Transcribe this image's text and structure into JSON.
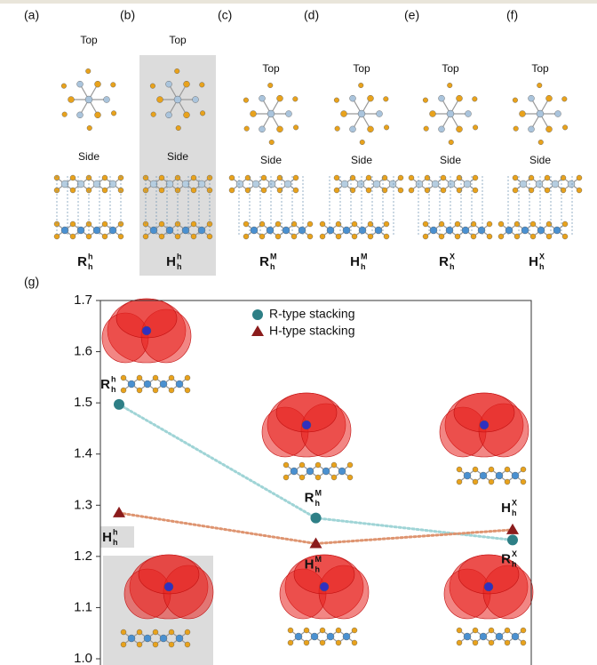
{
  "panels": [
    {
      "letter": "(a)",
      "top": "Top",
      "side": "Side",
      "label": {
        "base": "R",
        "sub": "h",
        "sup": "h"
      }
    },
    {
      "letter": "(b)",
      "top": "Top",
      "side": "Side",
      "label": {
        "base": "H",
        "sub": "h",
        "sup": "h"
      }
    },
    {
      "letter": "(c)",
      "top": "Top",
      "side": "Side",
      "label": {
        "base": "R",
        "sub": "h",
        "sup": "M"
      }
    },
    {
      "letter": "(d)",
      "top": "Top",
      "side": "Side",
      "label": {
        "base": "H",
        "sub": "h",
        "sup": "M"
      }
    },
    {
      "letter": "(e)",
      "top": "Top",
      "side": "Side",
      "label": {
        "base": "R",
        "sub": "h",
        "sup": "X"
      }
    },
    {
      "letter": "(f)",
      "top": "Top",
      "side": "Side",
      "label": {
        "base": "H",
        "sub": "h",
        "sup": "X"
      }
    }
  ],
  "chart_data": {
    "type": "scatter",
    "letter": "(g)",
    "categories": [
      null,
      null,
      null
    ],
    "ylim": [
      1.0,
      1.7
    ],
    "yticks": [
      {
        "value": 1.0,
        "label": "1.0"
      },
      1.1,
      1.2,
      1.3,
      1.4,
      1.5,
      1.6,
      1.7
    ],
    "legend": "top",
    "series": [
      {
        "name": "R-type stacking",
        "color": "#2e7f86",
        "line_color": "#9fd4d6",
        "marker": "circle",
        "values": [
          1.497,
          1.275,
          1.232
        ],
        "labels": [
          {
            "base": "R",
            "sub": "h",
            "sup": "h"
          },
          {
            "base": "R",
            "sub": "h",
            "sup": "M"
          },
          {
            "base": "R",
            "sub": "h",
            "sup": "X"
          }
        ]
      },
      {
        "name": "H-type stacking",
        "color": "#8b1c1c",
        "line_color": "#de9470",
        "marker": "triangle",
        "values": [
          1.285,
          1.225,
          1.252
        ],
        "labels": [
          {
            "base": "H",
            "sub": "h",
            "sup": "h"
          },
          {
            "base": "H",
            "sub": "h",
            "sup": "M"
          },
          {
            "base": "H",
            "sub": "h",
            "sup": "X"
          }
        ]
      }
    ]
  }
}
